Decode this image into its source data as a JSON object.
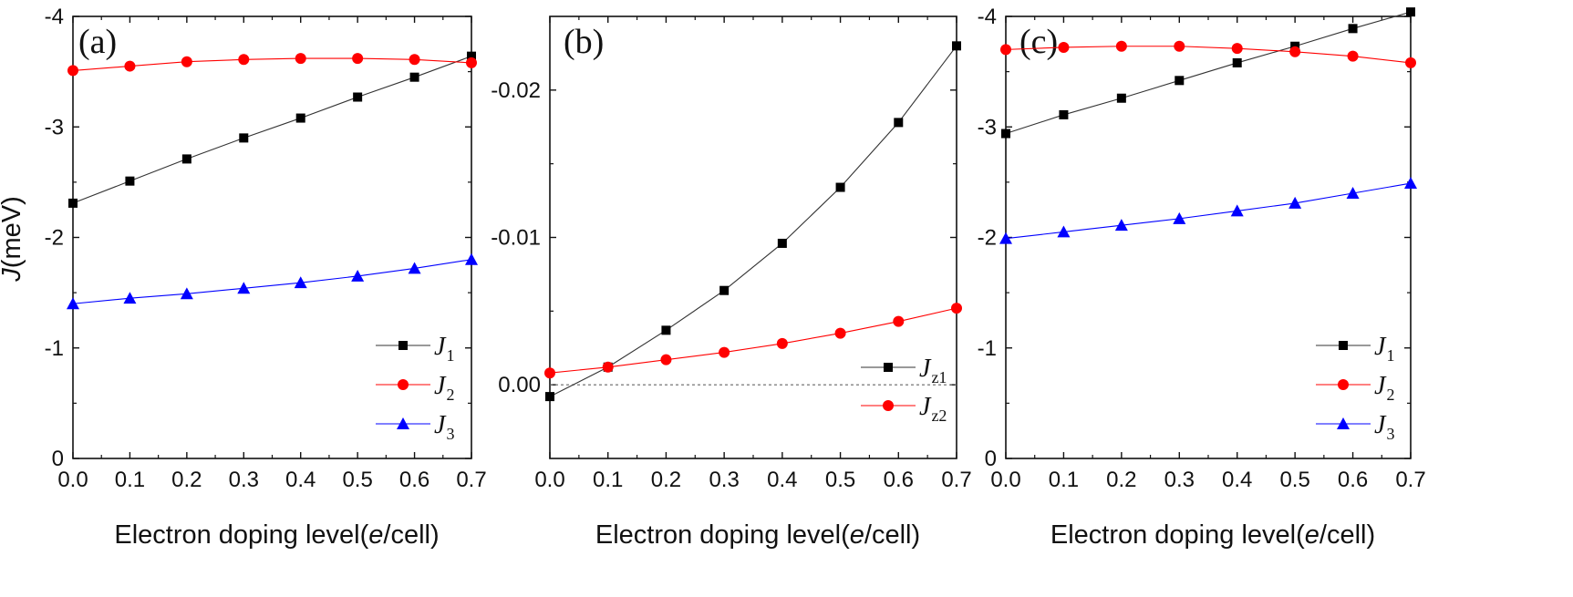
{
  "figure": {
    "ylabel_prefix": "J",
    "ylabel_suffix": "(meV)",
    "xlabel_prefix": "Electron doping level(",
    "xlabel_italic": "e",
    "xlabel_suffix": "/cell)"
  },
  "chart_data": [
    {
      "type": "line",
      "panel_label": "(a)",
      "x": [
        0.0,
        0.1,
        0.2,
        0.3,
        0.4,
        0.5,
        0.6,
        0.7
      ],
      "xlim": [
        0.0,
        0.7
      ],
      "xticks": [
        "0.0",
        "0.1",
        "0.2",
        "0.3",
        "0.4",
        "0.5",
        "0.6",
        "0.7"
      ],
      "ylim": [
        0,
        -4
      ],
      "yticks": [
        "-4",
        "-3",
        "-2",
        "-1",
        "0"
      ],
      "ytick_values": [
        -4,
        -3,
        -2,
        -1,
        0
      ],
      "legend_position": "bottom-right",
      "series": [
        {
          "name": "J",
          "sub": "1",
          "color": "#000000",
          "marker": "square",
          "values": [
            -2.31,
            -2.51,
            -2.71,
            -2.9,
            -3.08,
            -3.27,
            -3.45,
            -3.64
          ]
        },
        {
          "name": "J",
          "sub": "2",
          "color": "#ff0000",
          "marker": "circle",
          "values": [
            -3.51,
            -3.55,
            -3.59,
            -3.61,
            -3.62,
            -3.62,
            -3.61,
            -3.58
          ]
        },
        {
          "name": "J",
          "sub": "3",
          "color": "#0000ff",
          "marker": "triangle",
          "values": [
            -1.4,
            -1.45,
            -1.49,
            -1.54,
            -1.59,
            -1.65,
            -1.72,
            -1.8
          ]
        }
      ]
    },
    {
      "type": "line",
      "panel_label": "(b)",
      "x": [
        0.0,
        0.1,
        0.2,
        0.3,
        0.4,
        0.5,
        0.6,
        0.7
      ],
      "xlim": [
        0.0,
        0.7
      ],
      "xticks": [
        "0.0",
        "0.1",
        "0.2",
        "0.3",
        "0.4",
        "0.5",
        "0.6",
        "0.7"
      ],
      "ylim": [
        0.005,
        -0.025
      ],
      "yticks": [
        "-0.02",
        "-0.01",
        "0.00"
      ],
      "ytick_values": [
        -0.02,
        -0.01,
        0.0
      ],
      "legend_position": "bottom-right",
      "reference_line": 0.0,
      "series": [
        {
          "name": "J",
          "sub": "z1",
          "color": "#000000",
          "marker": "square",
          "values": [
            0.0008,
            -0.0012,
            -0.0037,
            -0.0064,
            -0.0096,
            -0.0134,
            -0.0178,
            -0.023
          ]
        },
        {
          "name": "J",
          "sub": "z2",
          "color": "#ff0000",
          "marker": "circle",
          "values": [
            -0.0008,
            -0.0012,
            -0.0017,
            -0.0022,
            -0.0028,
            -0.0035,
            -0.0043,
            -0.0052
          ]
        }
      ]
    },
    {
      "type": "line",
      "panel_label": "(c)",
      "x": [
        0.0,
        0.1,
        0.2,
        0.3,
        0.4,
        0.5,
        0.6,
        0.7
      ],
      "xlim": [
        0.0,
        0.7
      ],
      "xticks": [
        "0.0",
        "0.1",
        "0.2",
        "0.3",
        "0.4",
        "0.5",
        "0.6",
        "0.7"
      ],
      "ylim": [
        0,
        -4
      ],
      "yticks": [
        "-4",
        "-3",
        "-2",
        "-1",
        "0"
      ],
      "ytick_values": [
        -4,
        -3,
        -2,
        -1,
        0
      ],
      "legend_position": "bottom-right",
      "series": [
        {
          "name": "J",
          "sub": "1",
          "color": "#000000",
          "marker": "square",
          "values": [
            -2.94,
            -3.11,
            -3.26,
            -3.42,
            -3.58,
            -3.73,
            -3.89,
            -4.04
          ]
        },
        {
          "name": "J",
          "sub": "2",
          "color": "#ff0000",
          "marker": "circle",
          "values": [
            -3.7,
            -3.72,
            -3.73,
            -3.73,
            -3.71,
            -3.68,
            -3.64,
            -3.58
          ]
        },
        {
          "name": "J",
          "sub": "3",
          "color": "#0000ff",
          "marker": "triangle",
          "values": [
            -1.99,
            -2.05,
            -2.11,
            -2.17,
            -2.24,
            -2.31,
            -2.4,
            -2.49
          ]
        }
      ]
    }
  ]
}
